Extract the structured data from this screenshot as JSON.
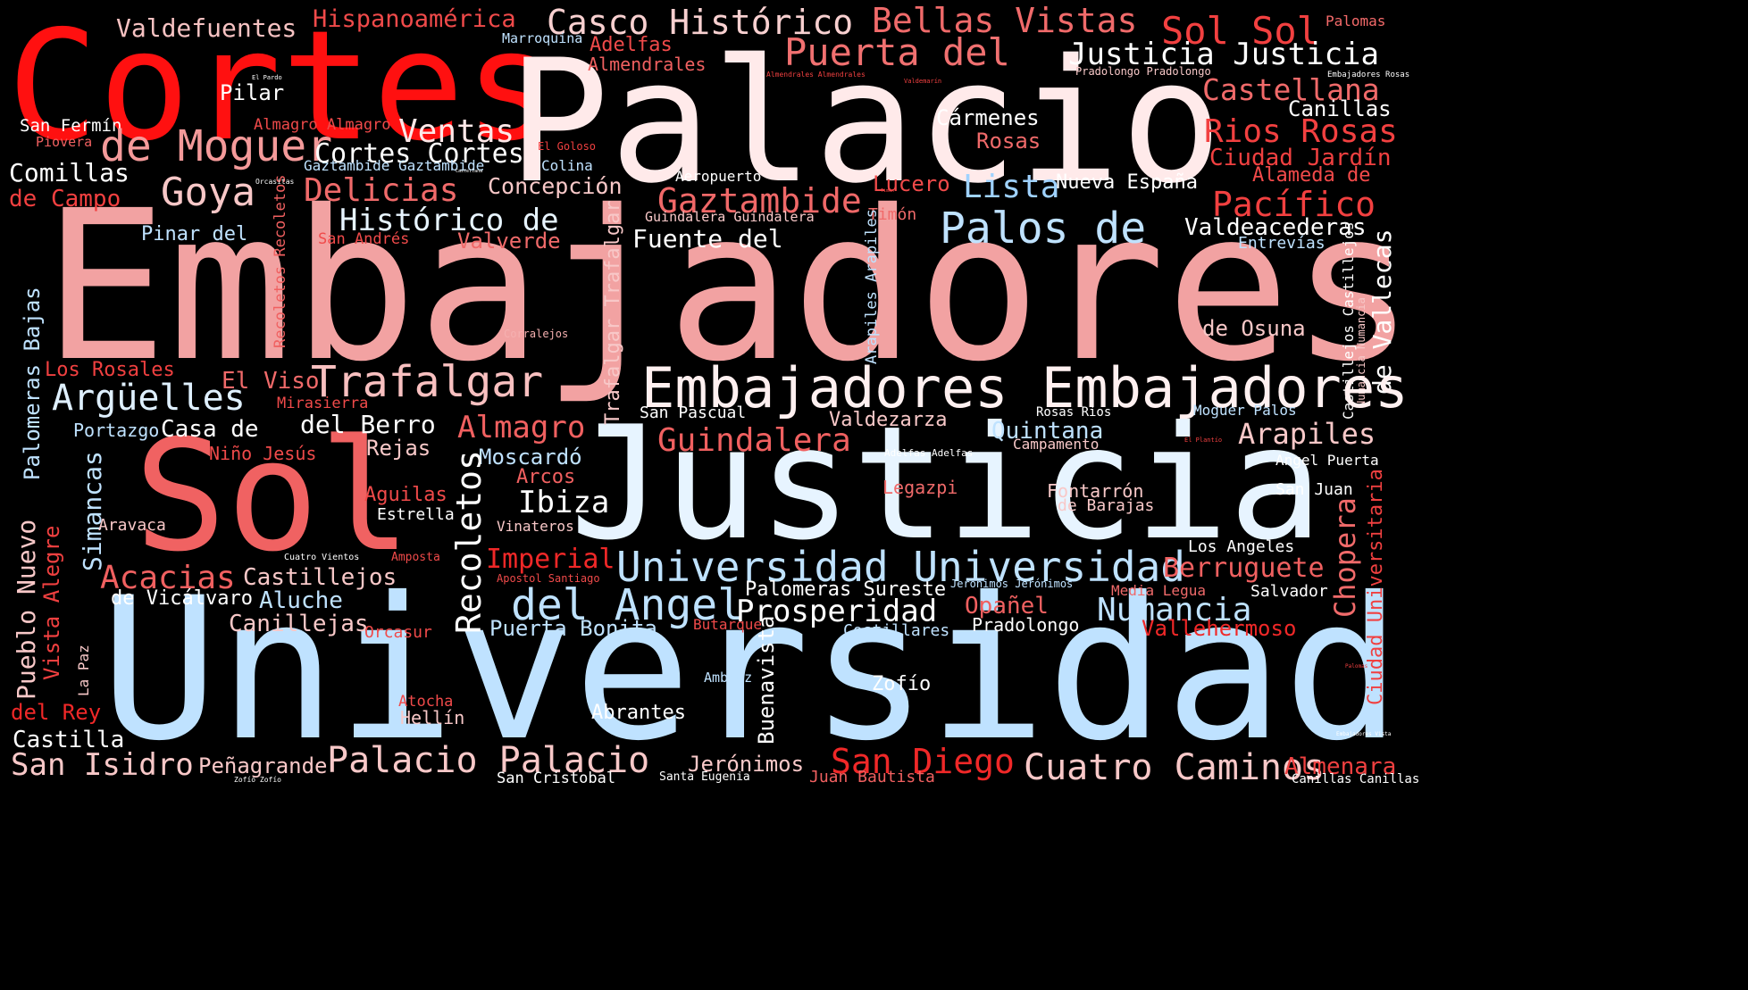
{
  "palette": {
    "background": "#000000",
    "red": "#ff1010",
    "red2": "#f0444a",
    "salmon": "#f5b0b0",
    "pink": "#f39a9a",
    "pale": "#ffe8e8",
    "white": "#ffffff",
    "ice": "#e4f3ff",
    "blue": "#bfe2ff"
  },
  "words": [
    "Cortes",
    "Palacio",
    "Embajadores",
    "Sol",
    "Justicia",
    "Universidad",
    "Valdefuentes",
    "Hispanoamérica",
    "Casco Histórico",
    "Bellas Vistas",
    "Sol Sol",
    "Palomas",
    "Marroquina",
    "Adelfas",
    "Almendrales",
    "Puerta del",
    "Justicia Justicia",
    "Castellana",
    "Pilar",
    "Canillas",
    "San Fermín",
    "Almagro Almagro",
    "de Moguer",
    "Ventas",
    "Cármenes",
    "Rios Rosas",
    "Piovera",
    "Cortes Cortes",
    "Rosas",
    "Ciudad Jardín",
    "Comillas",
    "Gaztambide Gaztambide",
    "Colina",
    "Concepción",
    "Aeropuerto",
    "Alameda de",
    "de Campo",
    "Goya",
    "Delicias",
    "Gaztambide",
    "Lucero",
    "Lista",
    "Nueva España",
    "Pacífico",
    "Histórico de",
    "Guindalera Guindalera",
    "Timón",
    "Palos de",
    "Valdeacederas",
    "Pinar del",
    "San Andrés",
    "Valverde",
    "Fuente del",
    "Entrevías",
    "Recoletos Recoletos",
    "Trafalgar Trafalgar",
    "Arapiles Arapiles",
    "Castillejos Castillejos",
    "Numancia Numancia",
    "de Vallecas",
    "Corralejos",
    "de Osuna",
    "Palomeras Bajas",
    "Los Rosales",
    "El Viso",
    "Trafalgar",
    "Embajadores Embajadores",
    "Argüelles",
    "Mirasierra",
    "San Pascual",
    "Valdezarza",
    "Rosas Rios",
    "Moguer Palos",
    "Portazgo",
    "Casa de",
    "del Berro",
    "Almagro",
    "Quintana",
    "Arapiles",
    "Guindalera",
    "Rejas",
    "Campamento",
    "Niño Jesús",
    "Moscardó",
    "Adelfas Adelfas",
    "Angel Puerta",
    "Simancas",
    "Recoletos",
    "Arcos",
    "Legazpi",
    "Fontarrón",
    "San Juan",
    "Aguilas",
    "Ibiza",
    "de Barajas",
    "Ciudad Universitaria",
    "Chopera",
    "Pueblo Nuevo",
    "Vista Alegre",
    "Aravaca",
    "Estrella",
    "Vinateros",
    "Los Angeles",
    "Imperial",
    "Acacias",
    "Castillejos",
    "Universidad Universidad",
    "Berruguete",
    "Cuatro Vientos",
    "Amposta",
    "Apostol Santiago",
    "Jerónimos Jerónimos",
    "de Vicálvaro",
    "Aluche",
    "del Angel",
    "Palomeras Sureste",
    "Media Legua",
    "Salvador",
    "Prosperidad",
    "Opañel",
    "Numancia",
    "Canillejas",
    "Puerta Bonita",
    "Butarque",
    "Costillares",
    "Pradolongo",
    "Vallehermoso",
    "Orcasur",
    "La Paz",
    "Buenavista",
    "Ambroz",
    "Zofío",
    "Atocha",
    "Hellín",
    "Abrantes",
    "del Rey",
    "Castilla",
    "San Isidro",
    "Peñagrande",
    "Palacio Palacio",
    "Jerónimos",
    "San Diego",
    "Cuatro Caminos",
    "Almenara",
    "San Cristobal",
    "Santa Eugenia",
    "Juan Bautista",
    "Canillas Canillas",
    "Zofío Zofío",
    "El Pardo",
    "Almendrales Almendrales",
    "Valdemarín",
    "Pradolongo Pradolongo",
    "Embajadores Rosas",
    "El Goloso",
    "Orcasitas",
    "Castellana",
    "Timón",
    "El Plantío",
    "Palomas",
    "Embajadores Vista"
  ]
}
